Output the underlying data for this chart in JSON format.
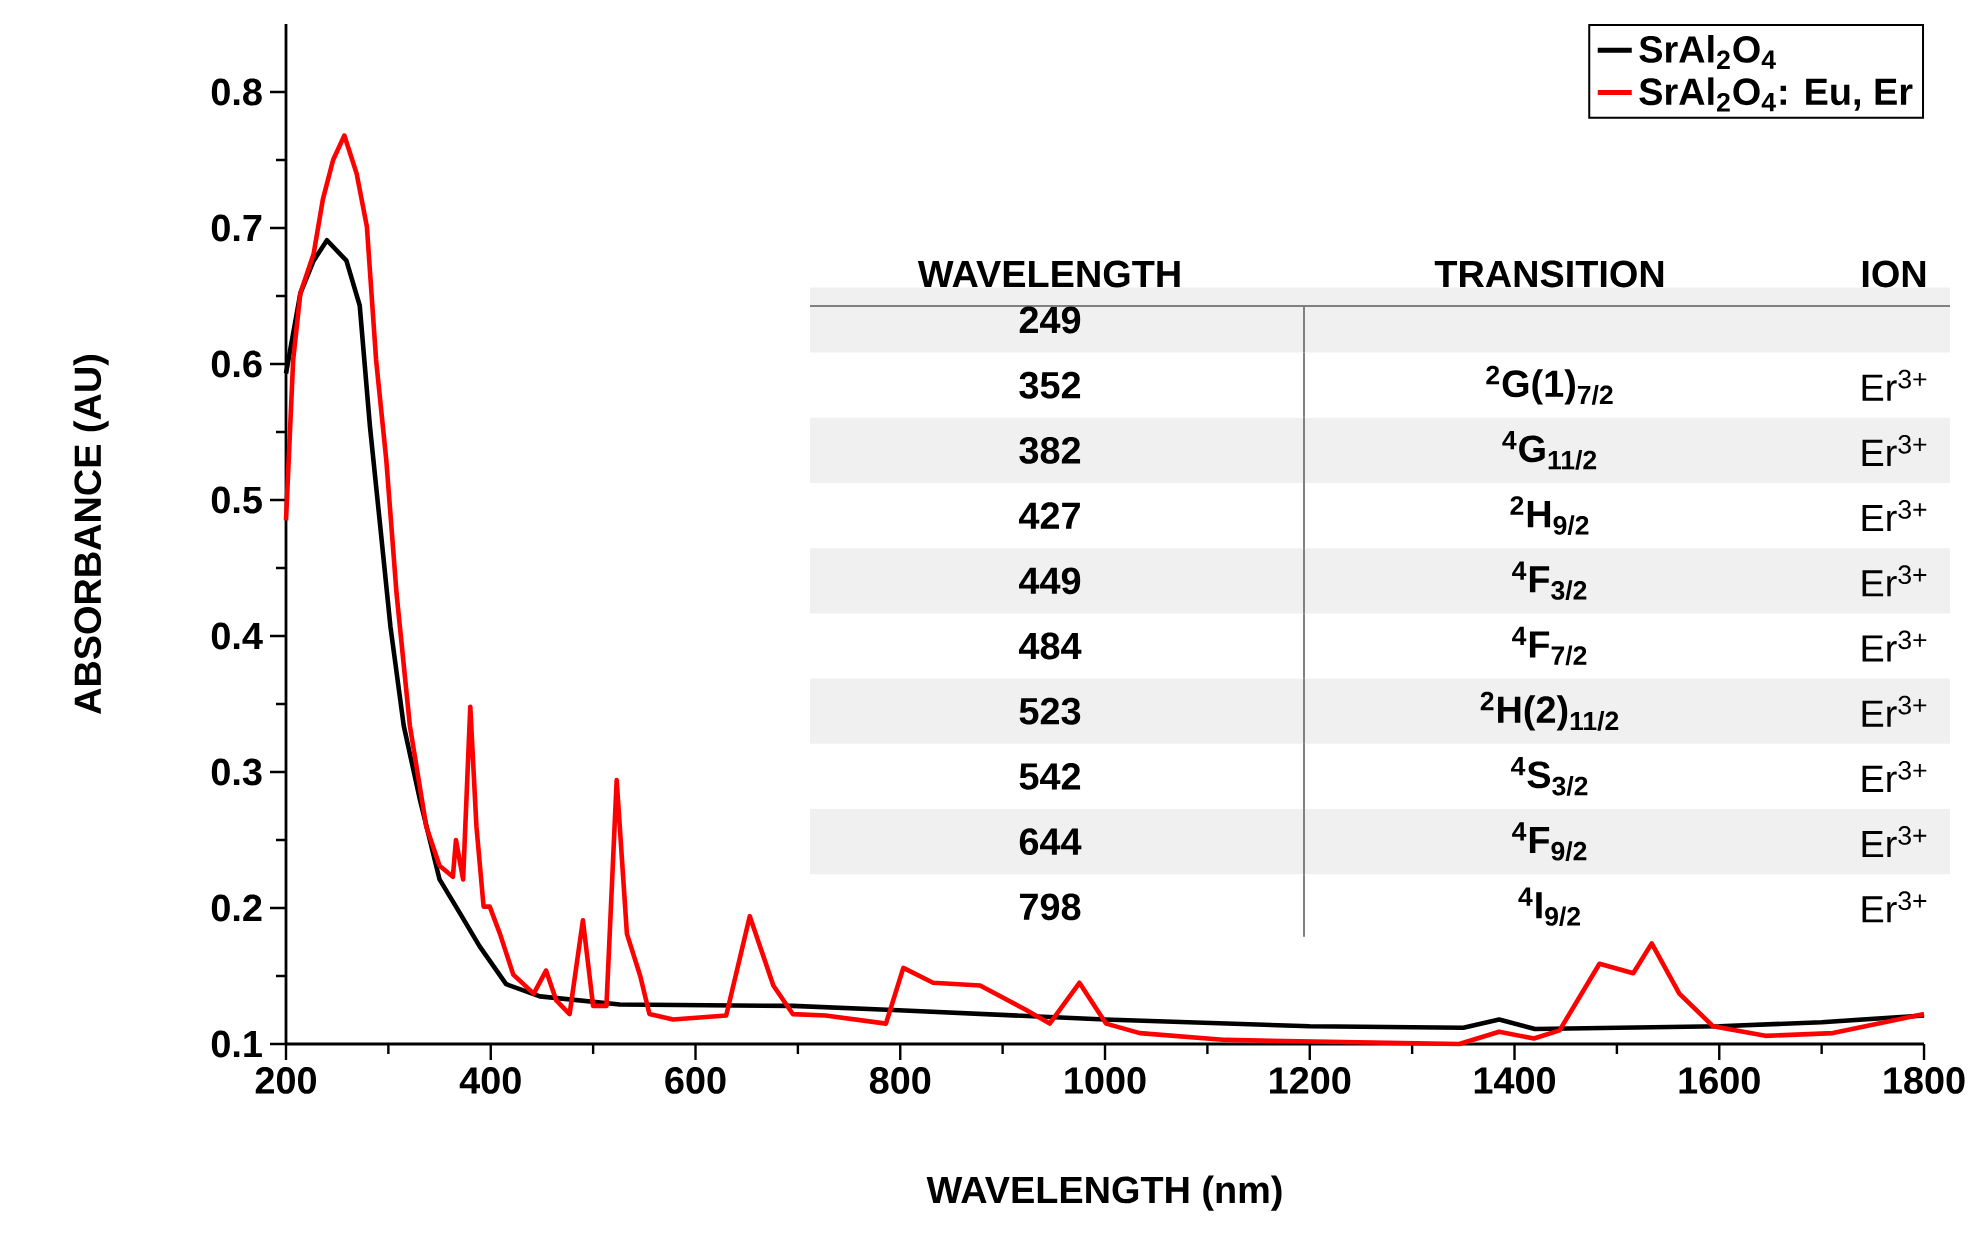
{
  "chart_data": {
    "type": "line",
    "xlabel": "WAVELENGTH (nm)",
    "ylabel": "ABSORBANCE (AU)",
    "xlim": [
      200,
      1800
    ],
    "ylim": [
      0.1,
      0.85
    ],
    "xticks": [
      200,
      {
        "value": 300,
        "label": null
      },
      400,
      {
        "value": 500,
        "label": null
      },
      600,
      {
        "value": 700,
        "label": null
      },
      800,
      {
        "value": 900,
        "label": null
      },
      1000,
      {
        "value": 1100,
        "label": null
      },
      1200,
      {
        "value": 1300,
        "label": null
      },
      1400,
      {
        "value": 1500,
        "label": null
      },
      1600,
      {
        "value": 1700,
        "label": null
      },
      1800
    ],
    "yticks": [
      0.1,
      {
        "value": 0.15,
        "label": null
      },
      0.2,
      {
        "value": 0.25,
        "label": null
      },
      0.3,
      {
        "value": 0.35,
        "label": null
      },
      0.4,
      {
        "value": 0.45,
        "label": null
      },
      0.5,
      {
        "value": 0.55,
        "label": null
      },
      0.6,
      {
        "value": 0.65,
        "label": null
      },
      0.7,
      {
        "value": 0.75,
        "label": null
      },
      0.8
    ],
    "legend": "top right",
    "series": [
      {
        "name": "SrAl$_{2}$O$_{4}$",
        "color": "#000000",
        "x": [
          200,
          214,
          227,
          240,
          259,
          272,
          282,
          292,
          302,
          315,
          331,
          350,
          370,
          389,
          415,
          448,
          526,
          695,
          793,
          1000,
          1200,
          1350,
          1385,
          1420,
          1600,
          1700,
          1800
        ],
        "values": [
          0.593,
          0.652,
          0.676,
          0.691,
          0.676,
          0.643,
          0.554,
          0.481,
          0.407,
          0.334,
          0.279,
          0.221,
          0.196,
          0.172,
          0.144,
          0.135,
          0.129,
          0.128,
          0.125,
          0.118,
          0.113,
          0.112,
          0.118,
          0.111,
          0.113,
          0.116,
          0.121
        ]
      },
      {
        "name": "SrAl$_{2}$O$_{4}$: Eu, Er",
        "color": "#ff0000",
        "x": [
          200,
          207,
          214,
          227,
          236,
          246,
          257,
          269,
          279,
          288,
          298,
          308,
          321,
          337,
          350,
          363,
          366,
          373,
          380,
          386,
          393,
          399,
          409,
          422,
          442,
          454,
          464,
          477,
          490,
          500,
          513,
          523,
          533,
          546,
          555,
          578,
          630,
          653,
          676,
          695,
          727,
          786,
          803,
          832,
          878,
          923,
          946,
          975,
          1001,
          1034,
          1118,
          1346,
          1385,
          1419,
          1444,
          1483,
          1516,
          1534,
          1561,
          1594,
          1645,
          1711,
          1800
        ],
        "values": [
          0.485,
          0.603,
          0.652,
          0.681,
          0.721,
          0.75,
          0.768,
          0.74,
          0.701,
          0.603,
          0.529,
          0.431,
          0.334,
          0.26,
          0.231,
          0.223,
          0.25,
          0.221,
          0.348,
          0.26,
          0.201,
          0.201,
          0.181,
          0.151,
          0.137,
          0.154,
          0.132,
          0.122,
          0.191,
          0.128,
          0.128,
          0.294,
          0.181,
          0.15,
          0.122,
          0.118,
          0.121,
          0.194,
          0.143,
          0.122,
          0.121,
          0.115,
          0.156,
          0.145,
          0.143,
          0.125,
          0.115,
          0.145,
          0.115,
          0.108,
          0.103,
          0.1,
          0.109,
          0.104,
          0.11,
          0.159,
          0.152,
          0.174,
          0.137,
          0.113,
          0.106,
          0.108,
          0.122
        ]
      }
    ],
    "annotations": [
      "WAVELENGTH",
      "TRANSITION",
      "ION",
      "249",
      "352",
      "$^{2}$G(1)$_{7/2}$",
      "Er$^{3+}$",
      "382",
      "$^{4}$G$_{11/2}$",
      "Er$^{3+}$",
      "427",
      "$^{2}$H$_{9/2}$",
      "Er$^{3+}$",
      "449",
      "$^{4}$F$_{3/2}$",
      "Er$^{3+}$",
      "484",
      "$^{4}$F$_{7/2}$",
      "Er$^{3+}$",
      "523",
      "$^{2}$H(2)$_{11/2}$",
      "Er$^{3+}$",
      "542",
      "$^{4}$S$_{3/2}$",
      "Er$^{3+}$",
      "644",
      "$^{4}$F$_{9/2}$",
      "Er$^{3+}$",
      "798",
      "$^{4}$I$_{9/2}$",
      "Er$^{3+}$"
    ]
  }
}
